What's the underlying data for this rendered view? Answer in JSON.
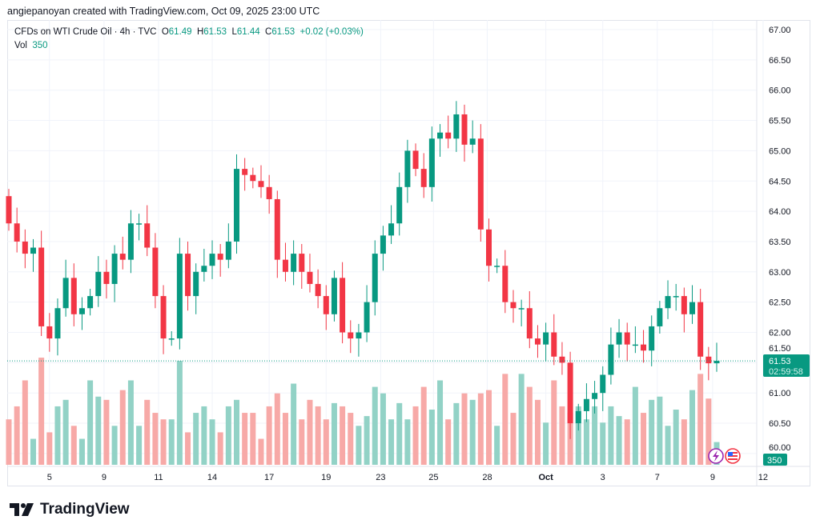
{
  "credit": "angiepanoyan created with TradingView.com, Oct 09, 2025 23:00 UTC",
  "legend": {
    "symbol": "CFDs on WTI Crude Oil · 4h · TVC",
    "o_label": "O",
    "o": "61.49",
    "h_label": "H",
    "h": "61.53",
    "l_label": "L",
    "l": "61.44",
    "c_label": "C",
    "c": "61.53",
    "change": "+0.02 (+0.03%)",
    "vol_label": "Vol",
    "vol": "350"
  },
  "logo_text": "TradingView",
  "colors": {
    "up": "#089981",
    "down": "#f23645",
    "vol_up": "#92d2c6",
    "vol_down": "#f7a9a7",
    "badge": "#089981"
  },
  "chart_data": {
    "type": "candlestick",
    "title": "CFDs on WTI Crude Oil · 4h · TVC",
    "ylim": [
      59.8,
      67.3
    ],
    "y_ticks": [
      "67.00",
      "66.50",
      "66.00",
      "65.50",
      "65.00",
      "64.50",
      "64.00",
      "63.50",
      "63.00",
      "62.50",
      "62.00",
      "61.50",
      "61.00",
      "60.50",
      "60.00"
    ],
    "x_ticks": [
      {
        "label": "5",
        "index": 5
      },
      {
        "label": "9",
        "index": 11.7
      },
      {
        "label": "11",
        "index": 18.4
      },
      {
        "label": "14",
        "index": 25
      },
      {
        "label": "17",
        "index": 32
      },
      {
        "label": "19",
        "index": 39
      },
      {
        "label": "23",
        "index": 45.7
      },
      {
        "label": "25",
        "index": 52.2
      },
      {
        "label": "28",
        "index": 58.8
      },
      {
        "label": "Oct",
        "index": 66
      },
      {
        "label": "3",
        "index": 73
      },
      {
        "label": "7",
        "index": 79.7
      },
      {
        "label": "9",
        "index": 86.5
      },
      {
        "label": "12",
        "index": 92.7
      }
    ],
    "start_open": 64.25,
    "close": [
      63.8,
      63.5,
      63.3,
      63.4,
      62.1,
      61.9,
      62.4,
      62.9,
      62.3,
      62.4,
      62.6,
      63.0,
      62.8,
      63.3,
      63.2,
      63.8,
      63.8,
      63.4,
      62.6,
      61.9,
      61.9,
      63.3,
      62.6,
      63.0,
      63.1,
      63.3,
      63.2,
      63.5,
      64.7,
      64.6,
      64.5,
      64.4,
      64.2,
      63.2,
      63.0,
      63.3,
      63.0,
      62.8,
      62.6,
      62.3,
      62.9,
      62.0,
      61.9,
      62.0,
      62.5,
      63.3,
      63.6,
      63.8,
      64.4,
      65.0,
      64.7,
      64.4,
      65.2,
      65.3,
      65.2,
      65.6,
      65.1,
      65.2,
      63.7,
      63.1,
      63.1,
      62.5,
      62.4,
      62.4,
      61.9,
      61.8,
      62.0,
      61.6,
      61.5,
      60.5,
      60.7,
      60.9,
      61.0,
      61.3,
      61.8,
      62.0,
      61.8,
      61.8,
      61.7,
      62.1,
      62.4,
      62.6,
      62.6,
      62.3,
      62.5,
      61.6,
      61.49,
      61.53
    ],
    "volume": [
      700,
      900,
      1300,
      400,
      1650,
      500,
      900,
      1000,
      600,
      400,
      1300,
      1050,
      1000,
      600,
      1150,
      1300,
      600,
      1000,
      800,
      700,
      700,
      1600,
      500,
      800,
      900,
      700,
      500,
      900,
      1000,
      800,
      800,
      400,
      900,
      1100,
      800,
      1250,
      700,
      1000,
      900,
      700,
      950,
      900,
      800,
      600,
      750,
      1200,
      1100,
      700,
      950,
      700,
      900,
      1200,
      850,
      1300,
      700,
      950,
      1100,
      1000,
      1100,
      1150,
      600,
      1400,
      800,
      1400,
      1200,
      1000,
      650,
      1300,
      900,
      800,
      900,
      700,
      900,
      650,
      900,
      750,
      700,
      1200,
      800,
      1000,
      1050,
      600,
      850,
      700,
      1150,
      1400,
      1020,
      350
    ],
    "last_price": "61.53",
    "countdown": "02:59:58",
    "last_volume": "350"
  }
}
